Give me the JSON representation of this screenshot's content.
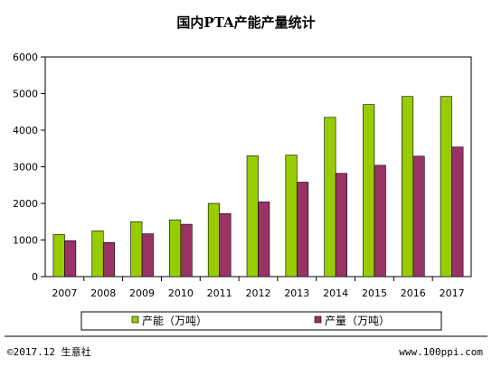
{
  "chart_data": {
    "type": "bar",
    "title": "国内PTA产能产量统计",
    "xlabel": "",
    "ylabel": "",
    "categories": [
      "2007",
      "2008",
      "2009",
      "2010",
      "2011",
      "2012",
      "2013",
      "2014",
      "2015",
      "2016",
      "2017"
    ],
    "series": [
      {
        "name": "产能（万吨）",
        "color": "#99cc00",
        "values": [
          1150,
          1250,
          1500,
          1550,
          2000,
          3300,
          3320,
          4350,
          4700,
          4920,
          4920
        ]
      },
      {
        "name": "产量（万吨）",
        "color": "#993366",
        "values": [
          980,
          930,
          1170,
          1430,
          1720,
          2040,
          2580,
          2820,
          3040,
          3290,
          3540
        ]
      }
    ],
    "ylim": [
      0,
      6000
    ],
    "yticks": [
      "0",
      "1000",
      "2000",
      "3000",
      "4000",
      "5000",
      "6000"
    ],
    "grid": false,
    "legend_position": "bottom"
  },
  "footer": {
    "copyright": "©2017.12 生意社",
    "url": "www.100ppi.com"
  }
}
